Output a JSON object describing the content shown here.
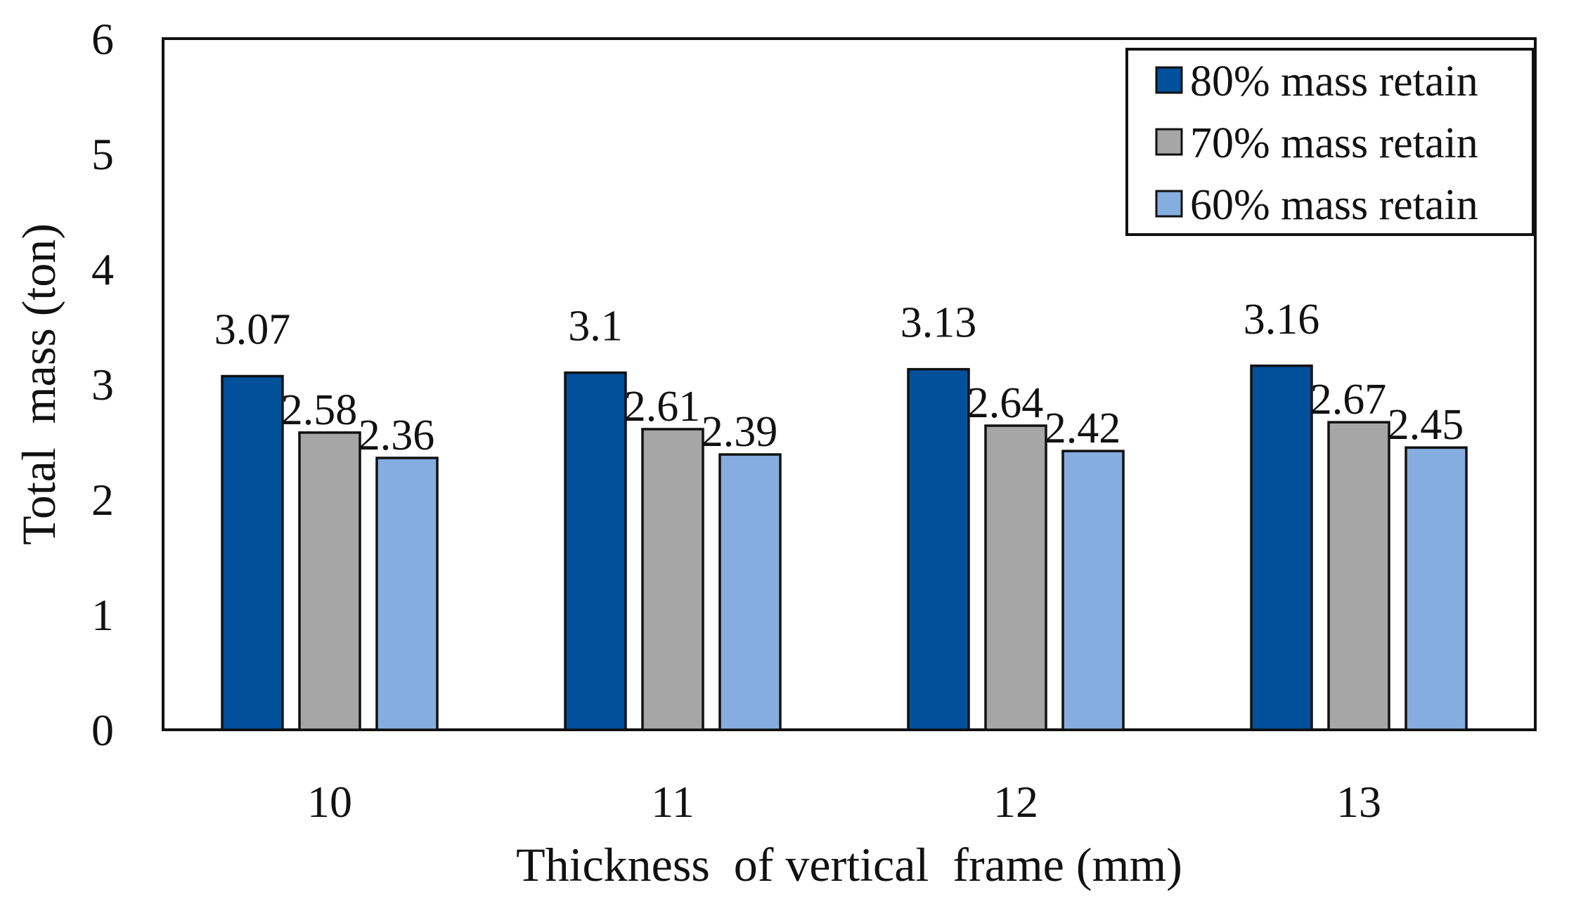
{
  "chart_data": {
    "type": "bar",
    "title": "",
    "xlabel": "Thickness  of vertical  frame (mm)",
    "ylabel": "Total  mass (ton)",
    "ylim": [
      0,
      6
    ],
    "yticks": [
      "0",
      "1",
      "2",
      "3",
      "4",
      "5",
      "6"
    ],
    "grid": false,
    "legend_position": "top-right",
    "categories": [
      "10",
      "11",
      "12",
      "13"
    ],
    "series": [
      {
        "name": "80% mass retain",
        "color": "#00509b",
        "values": [
          3.07,
          3.1,
          3.13,
          3.16
        ],
        "labels": [
          "3.07",
          "3.1",
          "3.13",
          "3.16"
        ]
      },
      {
        "name": "70% mass retain",
        "color": "#a6a6a6",
        "values": [
          2.58,
          2.61,
          2.64,
          2.67
        ],
        "labels": [
          "2.58",
          "2.61",
          "2.64",
          "2.67"
        ]
      },
      {
        "name": "60% mass retain",
        "color": "#86ade0",
        "values": [
          2.36,
          2.39,
          2.42,
          2.45
        ],
        "labels": [
          "2.36",
          "2.39",
          "2.42",
          "2.45"
        ]
      }
    ]
  }
}
